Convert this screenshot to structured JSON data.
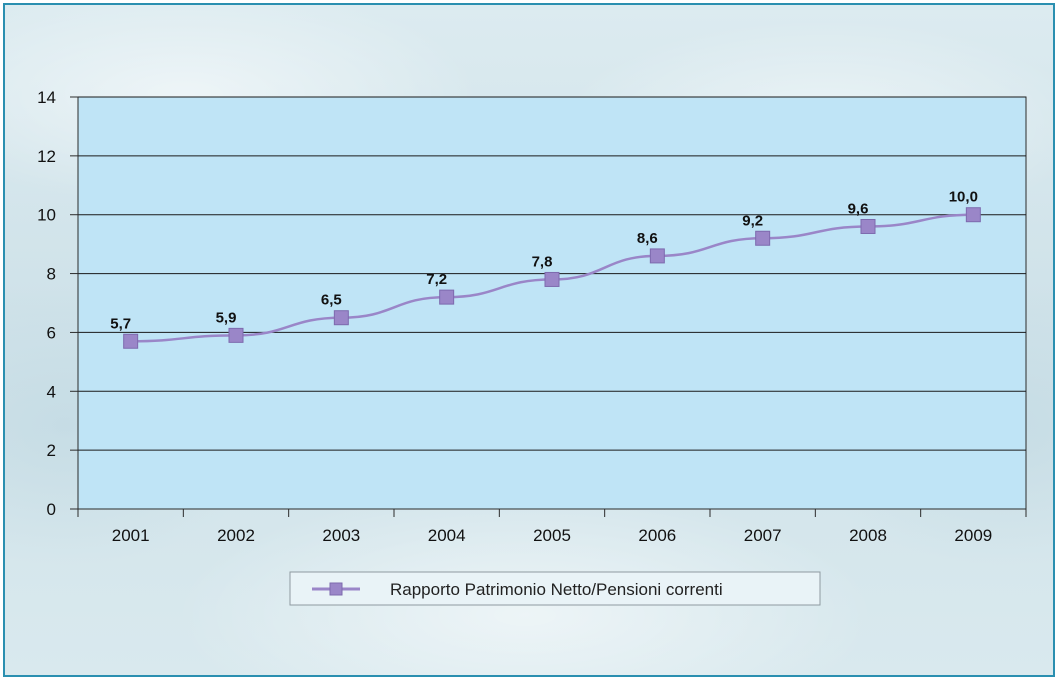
{
  "chart_data": {
    "type": "line",
    "title": "",
    "xlabel": "",
    "ylabel": "",
    "categories": [
      "2001",
      "2002",
      "2003",
      "2004",
      "2005",
      "2006",
      "2007",
      "2008",
      "2009"
    ],
    "series": [
      {
        "name": "Rapporto Patrimonio Netto/Pensioni correnti",
        "values": [
          5.7,
          5.9,
          6.5,
          7.2,
          7.8,
          8.6,
          9.2,
          9.6,
          10.0
        ],
        "labels": [
          "5,7",
          "5,9",
          "6,5",
          "7,2",
          "7,8",
          "8,6",
          "9,2",
          "9,6",
          "10,0"
        ],
        "color": "#9a86c8",
        "marker": "square"
      }
    ],
    "ylim": [
      0,
      14
    ],
    "yticks": [
      "0",
      "2",
      "4",
      "6",
      "8",
      "10",
      "12",
      "14"
    ],
    "grid": true,
    "legend_position": "bottom-center",
    "colors": {
      "plot_background": "#bfe4f6",
      "gridline": "#1a1a1a",
      "frame_border": "#2a8fb0"
    }
  }
}
